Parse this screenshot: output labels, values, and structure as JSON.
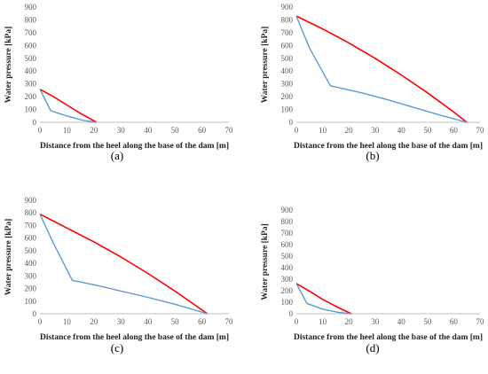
{
  "chart_data": [
    {
      "type": "line",
      "panel_label": "(a)",
      "xlabel": "Distance from the heel along the base of the dam [m]",
      "ylabel": "Water pressure [kPa]",
      "xlim": [
        0,
        70
      ],
      "ylim": [
        0,
        900
      ],
      "xticks": [
        0,
        10,
        20,
        30,
        40,
        50,
        60,
        70
      ],
      "yticks": [
        0,
        100,
        200,
        300,
        400,
        500,
        600,
        700,
        800,
        900
      ],
      "grid": false,
      "series": [
        {
          "color": "#ff0000",
          "x": [
            0,
            5,
            10,
            15,
            21
          ],
          "y": [
            258,
            200,
            135,
            70,
            0
          ]
        },
        {
          "color": "#5b9bd5",
          "x": [
            0,
            4,
            10,
            16,
            21
          ],
          "y": [
            258,
            90,
            50,
            15,
            0
          ]
        }
      ]
    },
    {
      "type": "line",
      "panel_label": "(b)",
      "xlabel": "Distance from the heel along the base of the dam [m]",
      "ylabel": "Water pressure [kPa]",
      "xlim": [
        0,
        70
      ],
      "ylim": [
        0,
        900
      ],
      "xticks": [
        0,
        10,
        20,
        30,
        40,
        50,
        60,
        70
      ],
      "yticks": [
        0,
        100,
        200,
        300,
        400,
        500,
        600,
        700,
        800,
        900
      ],
      "grid": false,
      "series": [
        {
          "color": "#ff0000",
          "x": [
            0,
            10,
            20,
            30,
            40,
            50,
            60,
            65
          ],
          "y": [
            830,
            730,
            620,
            500,
            370,
            230,
            80,
            0
          ]
        },
        {
          "color": "#5b9bd5",
          "x": [
            0,
            5,
            13,
            25,
            35,
            45,
            55,
            65
          ],
          "y": [
            830,
            580,
            285,
            230,
            175,
            115,
            55,
            0
          ]
        }
      ]
    },
    {
      "type": "line",
      "panel_label": "(c)",
      "xlabel": "Distance from the heel along the base of the dam [m]",
      "ylabel": "Water pressure [kPa]",
      "xlim": [
        0,
        70
      ],
      "ylim": [
        0,
        900
      ],
      "xticks": [
        0,
        10,
        20,
        30,
        40,
        50,
        60,
        70
      ],
      "yticks": [
        0,
        100,
        200,
        300,
        400,
        500,
        600,
        700,
        800,
        900
      ],
      "grid": false,
      "series": [
        {
          "color": "#ff0000",
          "x": [
            0,
            10,
            20,
            30,
            40,
            50,
            62
          ],
          "y": [
            790,
            680,
            570,
            450,
            320,
            180,
            0
          ]
        },
        {
          "color": "#5b9bd5",
          "x": [
            0,
            5,
            12,
            20,
            30,
            40,
            50,
            62
          ],
          "y": [
            790,
            560,
            265,
            230,
            180,
            130,
            75,
            0
          ]
        }
      ]
    },
    {
      "type": "line",
      "panel_label": "(d)",
      "xlabel": "Distance from the heel along the base of the dam [m]",
      "ylabel": "Water pressure [kPa]",
      "xlim": [
        0,
        70
      ],
      "ylim": [
        0,
        900
      ],
      "xticks": [
        0,
        10,
        20,
        30,
        40,
        50,
        60,
        70
      ],
      "yticks": [
        0,
        100,
        200,
        300,
        400,
        500,
        600,
        700,
        800,
        900
      ],
      "grid": false,
      "series": [
        {
          "color": "#ff0000",
          "x": [
            0,
            5,
            10,
            15,
            21
          ],
          "y": [
            262,
            195,
            125,
            65,
            0
          ]
        },
        {
          "color": "#5b9bd5",
          "x": [
            0,
            4,
            10,
            16,
            21
          ],
          "y": [
            262,
            90,
            40,
            12,
            0
          ]
        }
      ]
    }
  ]
}
